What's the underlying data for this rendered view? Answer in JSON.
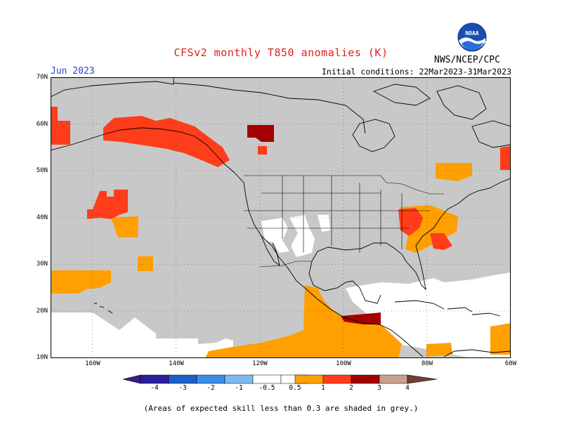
{
  "header": {
    "title": "CFSv2 monthly T850 anomalies (K)",
    "month": "Jun 2023",
    "initial_conditions": "Initial conditions: 22Mar2023-31Mar2023",
    "agency": "NWS/NCEP/CPC",
    "logo_text": "NOAA"
  },
  "map": {
    "lat_labels": [
      "70N",
      "60N",
      "50N",
      "40N",
      "30N",
      "20N",
      "10N"
    ],
    "lon_labels": [
      "160W",
      "140W",
      "120W",
      "100W",
      "80W",
      "60W"
    ],
    "grey_color": "#c8c8c8",
    "land_line_color": "#000000"
  },
  "colorbar": {
    "labels": [
      "-4",
      "-3",
      "-2",
      "-1",
      "-0.5",
      "0.5",
      "1",
      "2",
      "3",
      "4"
    ],
    "colors": [
      "#2d1ea0",
      "#1a5fcd",
      "#3a8ee8",
      "#7db9f0",
      "#ffffff",
      "#ff9f00",
      "#ff3d1a",
      "#a30000",
      "#c8a090",
      "#6e4030"
    ],
    "low_arrow_color": "#3a1a8a",
    "high_arrow_color": "#6e4030"
  },
  "footnote": "(Areas of expected skill less than 0.3 are shaded in grey.)"
}
